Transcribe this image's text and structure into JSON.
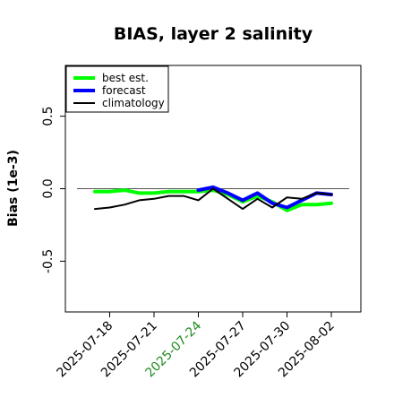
{
  "chart_data": {
    "type": "line",
    "title": "BIAS, layer 2 salinity",
    "ylabel": "Bias (1e-3)",
    "xlabel": "",
    "x_tick_labels": [
      "2025-07-18",
      "2025-07-21",
      "2025-07-24",
      "2025-07-27",
      "2025-07-30",
      "2025-08-02"
    ],
    "highlighted_tick": "2025-07-24",
    "highlight_color": "#228b22",
    "y_ticks": [
      -0.5,
      0.0,
      0.5
    ],
    "y_tick_labels": [
      "-0.5",
      "0.0",
      "0.5"
    ],
    "ylim": [
      -0.85,
      0.85
    ],
    "xlim": [
      "2025-07-15",
      "2025-08-04"
    ],
    "reference_line": 0.0,
    "legend_placement": "top-left",
    "grid": false,
    "series": [
      {
        "name": "best est.",
        "color": "#00ff00",
        "x": [
          "2025-07-17",
          "2025-07-18",
          "2025-07-19",
          "2025-07-20",
          "2025-07-21",
          "2025-07-22",
          "2025-07-23",
          "2025-07-24",
          "2025-07-25",
          "2025-07-26",
          "2025-07-27",
          "2025-07-28",
          "2025-07-29",
          "2025-07-30",
          "2025-07-31",
          "2025-08-01",
          "2025-08-02"
        ],
        "y": [
          -0.02,
          -0.02,
          -0.01,
          -0.03,
          -0.03,
          -0.02,
          -0.02,
          -0.02,
          -0.01,
          -0.04,
          -0.09,
          -0.05,
          -0.09,
          -0.15,
          -0.11,
          -0.11,
          -0.1
        ]
      },
      {
        "name": "forecast",
        "color": "#0000ff",
        "x": [
          "2025-07-24",
          "2025-07-25",
          "2025-07-26",
          "2025-07-27",
          "2025-07-28",
          "2025-07-29",
          "2025-07-30",
          "2025-07-31",
          "2025-08-01",
          "2025-08-02"
        ],
        "y": [
          -0.01,
          0.01,
          -0.03,
          -0.08,
          -0.03,
          -0.1,
          -0.13,
          -0.08,
          -0.03,
          -0.04
        ]
      },
      {
        "name": "climatology",
        "color": "#000000",
        "x": [
          "2025-07-17",
          "2025-07-18",
          "2025-07-19",
          "2025-07-20",
          "2025-07-21",
          "2025-07-22",
          "2025-07-23",
          "2025-07-24",
          "2025-07-25",
          "2025-07-26",
          "2025-07-27",
          "2025-07-28",
          "2025-07-29",
          "2025-07-30",
          "2025-07-31",
          "2025-08-01",
          "2025-08-02"
        ],
        "y": [
          -0.14,
          -0.13,
          -0.11,
          -0.08,
          -0.07,
          -0.05,
          -0.05,
          -0.08,
          0.0,
          -0.07,
          -0.14,
          -0.07,
          -0.13,
          -0.06,
          -0.07,
          -0.03,
          -0.04
        ]
      }
    ]
  }
}
